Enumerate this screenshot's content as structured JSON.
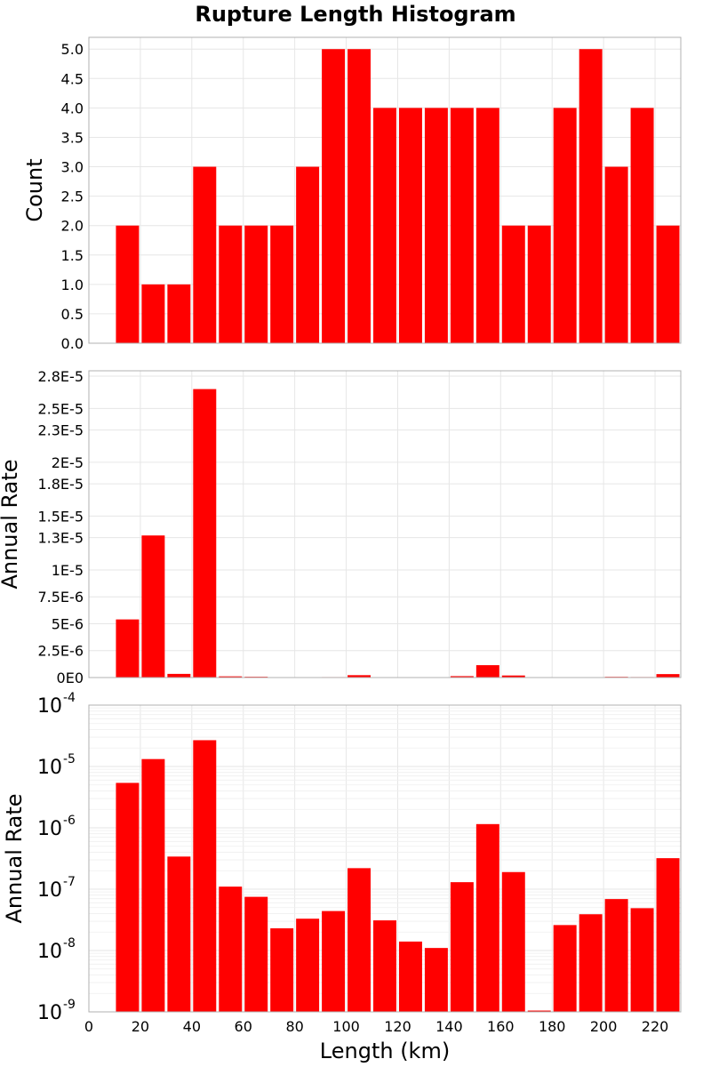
{
  "chart_data": {
    "type": "bar",
    "title": "Rupture Length Histogram",
    "xlabel": "Length (km)",
    "xlim": [
      0,
      230
    ],
    "x_ticks": [
      "0",
      "20",
      "40",
      "60",
      "80",
      "100",
      "120",
      "140",
      "160",
      "180",
      "200",
      "220"
    ],
    "bin_width": 10,
    "bin_centers": [
      15,
      25,
      35,
      45,
      55,
      65,
      75,
      85,
      95,
      105,
      115,
      125,
      135,
      145,
      155,
      165,
      175,
      185,
      195,
      205,
      215,
      225
    ],
    "panels": [
      {
        "ylabel": "Count",
        "scale": "linear",
        "ylim": [
          0,
          5.2
        ],
        "y_ticks": [
          "0.0",
          "0.5",
          "1.0",
          "1.5",
          "2.0",
          "2.5",
          "3.0",
          "3.5",
          "4.0",
          "4.5",
          "5.0"
        ],
        "values": [
          2,
          1,
          1,
          3,
          2,
          2,
          2,
          3,
          5,
          5,
          4,
          4,
          4,
          4,
          4,
          2,
          2,
          4,
          5,
          3,
          4,
          2
        ]
      },
      {
        "ylabel": "Annual Rate",
        "scale": "linear",
        "ylim": [
          0,
          2.85e-05
        ],
        "y_ticks": [
          "0E0",
          "2.5E-6",
          "5E-6",
          "7.5E-6",
          "1E-5",
          "1.3E-5",
          "1.5E-5",
          "1.8E-5",
          "2E-5",
          "2.3E-5",
          "2.5E-5",
          "2.8E-5"
        ],
        "values": [
          5.4e-06,
          1.32e-05,
          3.4e-07,
          2.68e-05,
          1.1e-07,
          7.5e-08,
          2.3e-08,
          3.3e-08,
          4.4e-08,
          2.2e-07,
          3.1e-08,
          1.4e-08,
          1.1e-08,
          1.3e-07,
          1.15e-06,
          1.9e-07,
          0,
          2.6e-08,
          3.9e-08,
          6.9e-08,
          4.9e-08,
          3.2e-07
        ]
      },
      {
        "ylabel": "Annual Rate",
        "scale": "log",
        "ylim": [
          1e-09,
          0.0001
        ],
        "y_ticks": [
          {
            "base": "10",
            "exp": "-9"
          },
          {
            "base": "10",
            "exp": "-8"
          },
          {
            "base": "10",
            "exp": "-7"
          },
          {
            "base": "10",
            "exp": "-6"
          },
          {
            "base": "10",
            "exp": "-5"
          },
          {
            "base": "10",
            "exp": "-4"
          }
        ],
        "values": [
          5.4e-06,
          1.32e-05,
          3.4e-07,
          2.68e-05,
          1.1e-07,
          7.5e-08,
          2.3e-08,
          3.3e-08,
          4.4e-08,
          2.2e-07,
          3.1e-08,
          1.4e-08,
          1.1e-08,
          1.3e-07,
          1.15e-06,
          1.9e-07,
          1.05e-09,
          2.6e-08,
          3.9e-08,
          6.9e-08,
          4.9e-08,
          3.2e-07
        ]
      }
    ]
  }
}
